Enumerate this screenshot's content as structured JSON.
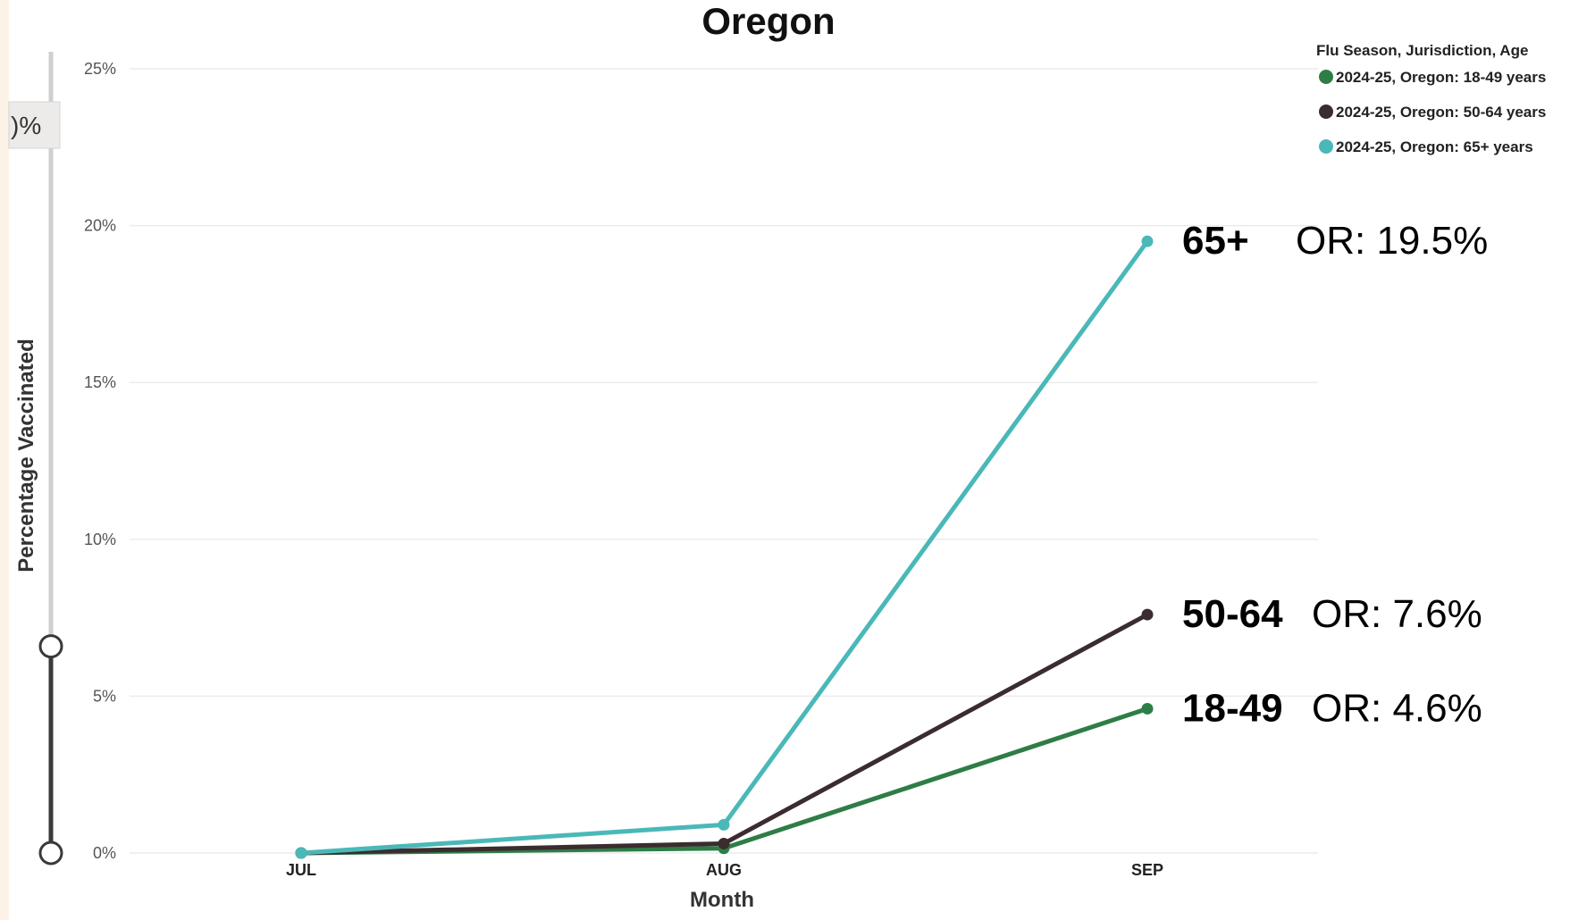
{
  "chart_data": {
    "type": "line",
    "title": "Oregon",
    "xlabel": "Month",
    "ylabel": "Percentage Vaccinated",
    "categories": [
      "JUL",
      "AUG",
      "SEP"
    ],
    "yticks": [
      "0%",
      "5%",
      "10%",
      "15%",
      "20%",
      "25%"
    ],
    "ylim": [
      0,
      25
    ],
    "grid": true,
    "legend": {
      "title": "Flu Season, Jurisdiction, Age",
      "placement": "top-right"
    },
    "series": [
      {
        "name": "2024-25, Oregon: 18-49 years",
        "color": "#2e7d46",
        "values": [
          0.0,
          0.15,
          4.6
        ]
      },
      {
        "name": "2024-25, Oregon: 50-64 years",
        "color": "#3a2c2f",
        "values": [
          0.0,
          0.3,
          7.6
        ]
      },
      {
        "name": "2024-25, Oregon: 65+ years",
        "color": "#4bb8b8",
        "values": [
          0.0,
          0.9,
          19.5
        ]
      }
    ],
    "annotations": [
      {
        "age": "65+",
        "value": "OR: 19.5%",
        "y": 19.5
      },
      {
        "age": "50-64",
        "value": "OR: 7.6%",
        "y": 7.6
      },
      {
        "age": "18-49",
        "value": "OR: 4.6%",
        "y": 4.6
      }
    ]
  },
  "slider": {
    "label": ")%",
    "low_fraction": 0.0,
    "high_fraction": 0.258
  }
}
